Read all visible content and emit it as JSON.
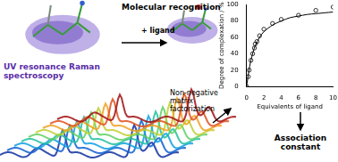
{
  "labels": {
    "recognition": "Molecular recognition",
    "ligand": "+ ligand",
    "spectroscopy": "UV resonance Raman spectroscopy",
    "method": "Non-negative matrix factorization",
    "result": "Association constant"
  },
  "chart_data": {
    "type": "scatter",
    "x_label": "Equivalents of ligand",
    "y_label": "Degree of complexation / %",
    "xlim": [
      0,
      10
    ],
    "ylim": [
      0,
      100
    ],
    "xticks": [
      0,
      2,
      4,
      6,
      8,
      10
    ],
    "yticks": [
      0,
      20,
      40,
      60,
      80,
      100
    ],
    "grid": false,
    "series": [
      {
        "type": "scatter",
        "marker": "circle",
        "color": "#000000",
        "x": [
          0,
          0.2,
          0.3,
          0.5,
          0.7,
          0.9,
          1,
          1.2,
          1.5,
          2,
          3,
          4,
          6,
          8,
          10
        ],
        "values": [
          0,
          12,
          20,
          32,
          40,
          47,
          52,
          55,
          62,
          70,
          77,
          82,
          87,
          93,
          97
        ]
      },
      {
        "type": "line",
        "marker": "none",
        "line_style": "solid",
        "color": "#000000",
        "x": [
          0,
          0.25,
          0.5,
          0.75,
          1,
          1.5,
          2,
          3,
          4,
          5,
          6,
          7,
          8,
          9,
          10
        ],
        "values": [
          0,
          18,
          32,
          42,
          50,
          60,
          67,
          75,
          80,
          84,
          86,
          88,
          89,
          90,
          91
        ]
      }
    ]
  }
}
